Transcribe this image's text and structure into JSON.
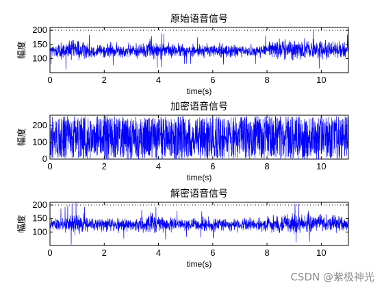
{
  "chart_data": [
    {
      "type": "line",
      "title": "原始语音信号",
      "xlabel": "time(s)",
      "ylabel": "幅度",
      "xlim": [
        0,
        11
      ],
      "ylim": [
        50,
        210
      ],
      "xticks": [
        0,
        2,
        4,
        6,
        8,
        10
      ],
      "yticks": [
        100,
        150,
        200
      ],
      "x_tick_labels": [
        "0",
        "2",
        "4",
        "6",
        "8",
        "10"
      ],
      "y_tick_labels": [
        "100",
        "150",
        "200"
      ],
      "grid": false,
      "reference_lines": [
        200
      ],
      "color": "#0000ff",
      "signal": "dense noisy waveform centred near 128, mostly 90–165, peaks to ~210",
      "envelope_x": [
        0,
        0.5,
        0.9,
        1.5,
        2.5,
        3.5,
        3.7,
        3.9,
        5,
        6,
        7,
        7.8,
        8.3,
        9,
        10,
        10.5,
        11
      ],
      "envelope_center": [
        128,
        127,
        130,
        128,
        127,
        128,
        140,
        130,
        127,
        128,
        126,
        127,
        135,
        133,
        134,
        132,
        130
      ],
      "envelope_halfwidth": [
        25,
        35,
        45,
        30,
        28,
        30,
        48,
        35,
        25,
        28,
        25,
        25,
        38,
        40,
        38,
        35,
        30
      ]
    },
    {
      "type": "line",
      "title": "加密语音信号",
      "xlabel": "time(s)",
      "ylabel": "幅度",
      "xlim": [
        0,
        11
      ],
      "ylim": [
        0,
        260
      ],
      "xticks": [
        0,
        2,
        4,
        6,
        8,
        10
      ],
      "yticks": [
        0,
        100,
        200
      ],
      "x_tick_labels": [
        "0",
        "2",
        "4",
        "6",
        "8",
        "10"
      ],
      "y_tick_labels": [
        "0",
        "100",
        "200"
      ],
      "grid": false,
      "color": "#0000ff",
      "signal": "uniform noise filling the full range 0–255",
      "envelope_x": [
        0,
        11
      ],
      "envelope_center": [
        127.5,
        127.5
      ],
      "envelope_halfwidth": [
        127.5,
        127.5
      ]
    },
    {
      "type": "line",
      "title": "解密语音信号",
      "xlabel": "time(s)",
      "ylabel": "幅度",
      "xlim": [
        0,
        11
      ],
      "ylim": [
        50,
        210
      ],
      "xticks": [
        0,
        2,
        4,
        6,
        8,
        10
      ],
      "yticks": [
        100,
        150,
        200
      ],
      "x_tick_labels": [
        "0",
        "2",
        "4",
        "6",
        "8",
        "10"
      ],
      "y_tick_labels": [
        "100",
        "150",
        "200"
      ],
      "grid": false,
      "reference_lines": [
        200
      ],
      "color": "#0000ff",
      "signal": "dense noisy waveform centred near 128, mostly 90–165, peaks to ~210",
      "envelope_x": [
        0,
        0.5,
        0.9,
        1.5,
        2.5,
        3.5,
        3.7,
        3.9,
        5,
        6,
        7,
        7.8,
        8.3,
        9,
        10,
        10.5,
        11
      ],
      "envelope_center": [
        128,
        127,
        130,
        128,
        127,
        128,
        140,
        130,
        127,
        128,
        126,
        127,
        135,
        133,
        134,
        132,
        130
      ],
      "envelope_halfwidth": [
        25,
        35,
        45,
        30,
        28,
        30,
        48,
        35,
        25,
        28,
        25,
        25,
        38,
        40,
        38,
        35,
        30
      ]
    }
  ],
  "watermark": "CSDN @紫极神光"
}
